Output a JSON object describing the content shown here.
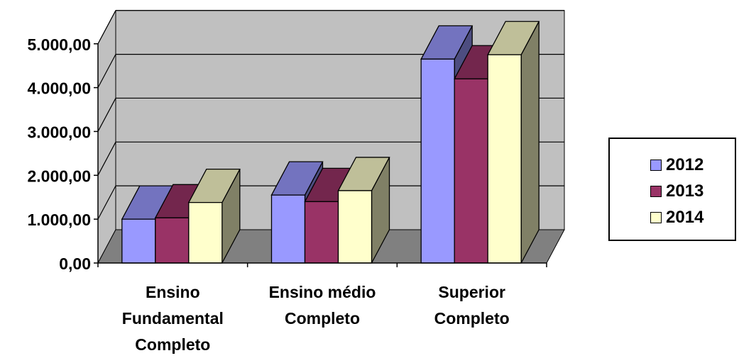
{
  "chart_data": {
    "type": "bar",
    "categories": [
      "Ensino Fundamental Completo",
      "Ensino médio Completo",
      "Superior Completo"
    ],
    "category_lines": [
      [
        "Ensino",
        "Fundamental",
        "Completo"
      ],
      [
        "Ensino médio",
        "Completo"
      ],
      [
        "Superior",
        "Completo"
      ]
    ],
    "series": [
      {
        "name": "2012",
        "values": [
          1000,
          1550,
          4650
        ]
      },
      {
        "name": "2013",
        "values": [
          1030,
          1400,
          4200
        ]
      },
      {
        "name": "2014",
        "values": [
          1380,
          1650,
          4750
        ]
      }
    ],
    "ylim": [
      0,
      5000
    ],
    "yticks": [
      0,
      1000,
      2000,
      3000,
      4000,
      5000
    ],
    "ytick_labels": [
      "0,00",
      "1.000,00",
      "2.000,00",
      "3.000,00",
      "4.000,00",
      "5.000,00"
    ],
    "grid": true,
    "three_d": true,
    "legend_position": "right",
    "colors": {
      "series": [
        "#9999ff",
        "#993366",
        "#ffffcc"
      ],
      "wall": "#c0c0c0",
      "floor": "#808080",
      "grid": "#000000"
    },
    "title": "",
    "xlabel": "",
    "ylabel": ""
  }
}
